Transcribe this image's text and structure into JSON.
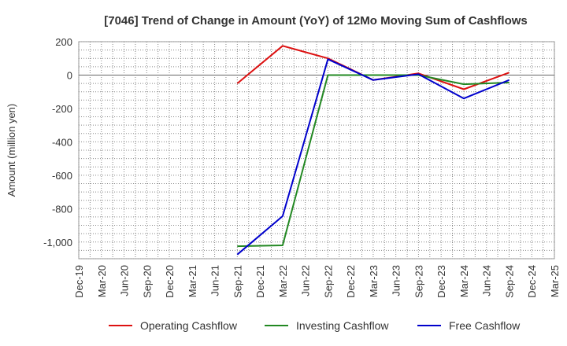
{
  "chart_data": {
    "type": "line",
    "title": "[7046]  Trend of Change in Amount (YoY) of 12Mo Moving Sum of Cashflows",
    "xlabel": "",
    "ylabel": "Amount (million yen)",
    "ylim": [
      -1100,
      200
    ],
    "yticks": [
      200,
      0,
      -200,
      -400,
      -600,
      -800,
      -1000
    ],
    "ytick_labels": [
      "200",
      "0",
      "-200",
      "-400",
      "-600",
      "-800",
      "-1,000"
    ],
    "grid": true,
    "legend_position": "bottom",
    "categories": [
      "Dec-19",
      "Mar-20",
      "Jun-20",
      "Sep-20",
      "Dec-20",
      "Mar-21",
      "Jun-21",
      "Sep-21",
      "Dec-21",
      "Mar-22",
      "Jun-22",
      "Sep-22",
      "Dec-22",
      "Mar-23",
      "Jun-23",
      "Sep-23",
      "Dec-23",
      "Mar-24",
      "Jun-24",
      "Sep-24",
      "Dec-24",
      "Mar-25"
    ],
    "series": [
      {
        "name": "Operating Cashflow",
        "color": "#dd1111",
        "values": [
          null,
          null,
          null,
          null,
          null,
          null,
          null,
          -50,
          null,
          175,
          null,
          100,
          null,
          -30,
          null,
          10,
          null,
          -85,
          null,
          15,
          null,
          null
        ]
      },
      {
        "name": "Investing Cashflow",
        "color": "#228822",
        "values": [
          null,
          null,
          null,
          null,
          null,
          null,
          null,
          -1025,
          null,
          -1020,
          null,
          0,
          null,
          0,
          null,
          0,
          null,
          -55,
          null,
          -45,
          null,
          null
        ]
      },
      {
        "name": "Free Cashflow",
        "color": "#0000cc",
        "values": [
          null,
          null,
          null,
          null,
          null,
          null,
          null,
          -1075,
          null,
          -845,
          null,
          95,
          null,
          -30,
          null,
          5,
          null,
          -140,
          null,
          -30,
          null,
          null
        ]
      }
    ]
  }
}
